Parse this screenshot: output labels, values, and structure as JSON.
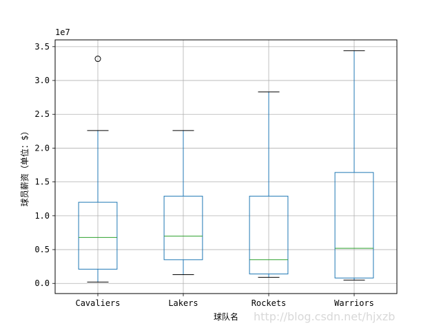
{
  "chart_data": {
    "type": "box",
    "title": "",
    "xlabel": "球队名",
    "ylabel": "球员薪资（单位：$）",
    "y_offset_label": "1e7",
    "categories": [
      "Cavaliers",
      "Lakers",
      "Rockets",
      "Warriors"
    ],
    "ylim": [
      -0.15,
      3.6
    ],
    "yticks": [
      0.0,
      0.5,
      1.0,
      1.5,
      2.0,
      2.5,
      3.0,
      3.5
    ],
    "ytick_labels": [
      "0.0",
      "0.5",
      "1.0",
      "1.5",
      "2.0",
      "2.5",
      "3.0",
      "3.5"
    ],
    "grid": true,
    "series": [
      {
        "category": "Cavaliers",
        "whisker_low": 0.02,
        "q1": 0.21,
        "median": 0.68,
        "q3": 1.2,
        "whisker_high": 2.26,
        "outliers": [
          3.32
        ]
      },
      {
        "category": "Lakers",
        "whisker_low": 0.13,
        "q1": 0.35,
        "median": 0.7,
        "q3": 1.29,
        "whisker_high": 2.26,
        "outliers": []
      },
      {
        "category": "Rockets",
        "whisker_low": 0.09,
        "q1": 0.14,
        "median": 0.35,
        "q3": 1.29,
        "whisker_high": 2.83,
        "outliers": []
      },
      {
        "category": "Warriors",
        "whisker_low": 0.05,
        "q1": 0.08,
        "median": 0.52,
        "q3": 1.64,
        "whisker_high": 3.44,
        "outliers": []
      }
    ],
    "colors": {
      "box": "#1f77b4",
      "median": "#2ca02c",
      "whisker_cap": "#000000",
      "grid": "#b0b0b0"
    }
  },
  "watermark": "http://blog.csdn.net/hjxzb"
}
